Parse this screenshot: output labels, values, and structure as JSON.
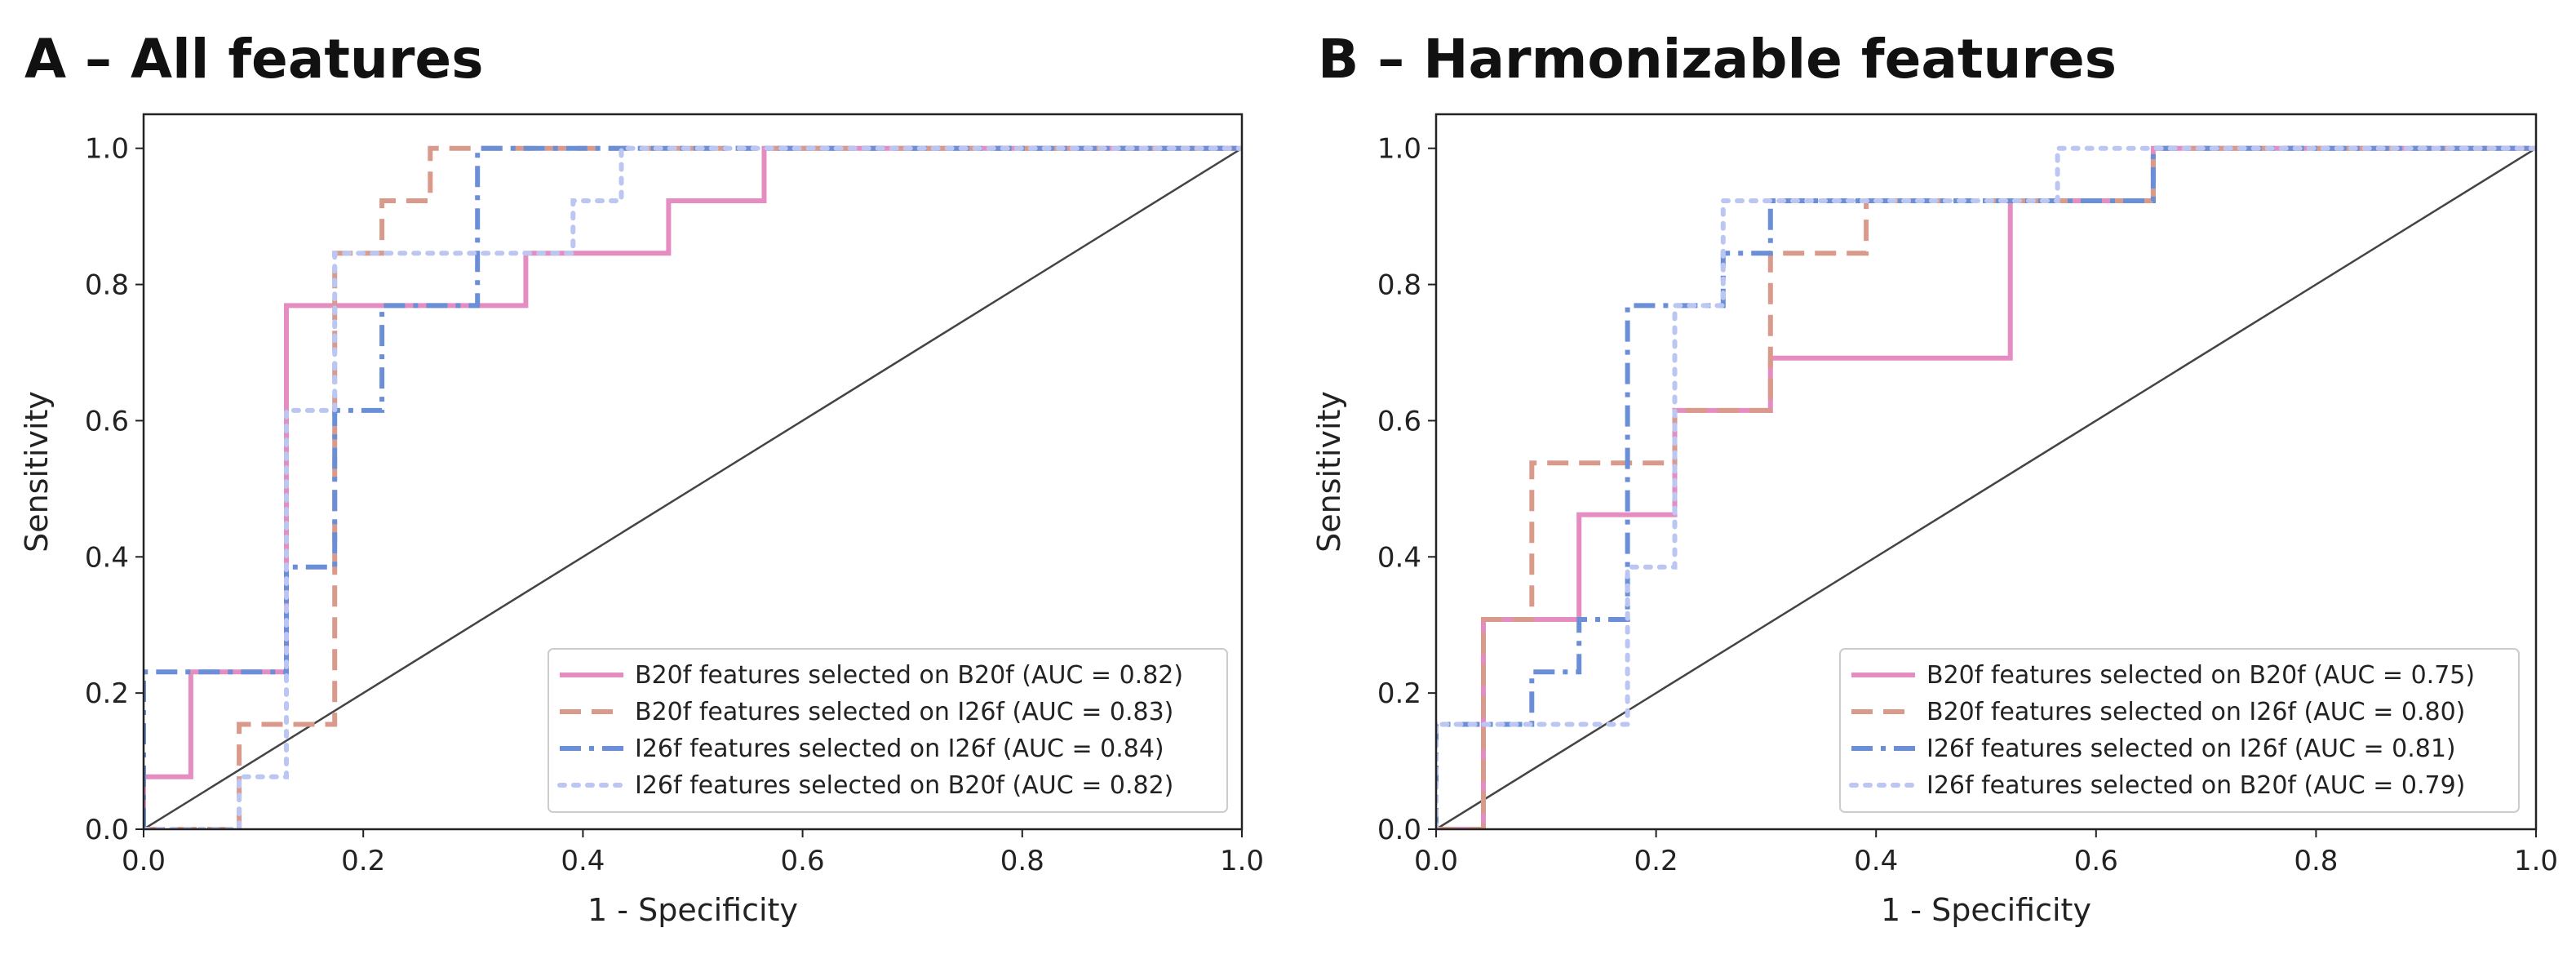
{
  "chart_data": [
    {
      "type": "line",
      "title": "A – All features",
      "xlabel": "1 - Specificity",
      "ylabel": "Sensitivity",
      "xlim": [
        0,
        1
      ],
      "ylim": [
        0,
        1.05
      ],
      "ticks": [
        "0.0",
        "0.2",
        "0.4",
        "0.6",
        "0.8",
        "1.0"
      ],
      "legend_position": "lower-right",
      "diagonal_color": "#444444",
      "series": [
        {
          "name": "B20f features selected on B20f (AUC = 0.82)",
          "color": "#e58cc0",
          "dash": "solid",
          "x": [
            0,
            0,
            0.043,
            0.043,
            0.13,
            0.13,
            0.348,
            0.348,
            0.478,
            0.478,
            0.565,
            0.565,
            1.0
          ],
          "y": [
            0,
            0.077,
            0.077,
            0.231,
            0.231,
            0.769,
            0.769,
            0.846,
            0.846,
            0.923,
            0.923,
            1.0,
            1.0
          ]
        },
        {
          "name": "B20f features selected on I26f (AUC = 0.83)",
          "color": "#d99a8c",
          "dash": "dashed",
          "x": [
            0,
            0.087,
            0.087,
            0.174,
            0.174,
            0.217,
            0.217,
            0.261,
            0.261,
            1.0
          ],
          "y": [
            0,
            0,
            0.154,
            0.154,
            0.846,
            0.846,
            0.923,
            0.923,
            1.0,
            1.0
          ],
          "extra_x": [
            0.0,
            0.0
          ],
          "extra_y": [
            0.0,
            0.0
          ]
        },
        {
          "name": "I26f features selected on I26f (AUC = 0.84)",
          "color": "#6a8fd6",
          "dash": "dashdot",
          "x": [
            0,
            0,
            0.13,
            0.13,
            0.174,
            0.174,
            0.217,
            0.217,
            0.304,
            0.304,
            1.0
          ],
          "y": [
            0,
            0.231,
            0.231,
            0.385,
            0.385,
            0.615,
            0.615,
            0.769,
            0.769,
            1.0,
            1.0
          ]
        },
        {
          "name": "I26f features selected on B20f (AUC = 0.82)",
          "color": "#bcc6f2",
          "dash": "dotted",
          "x": [
            0,
            0.087,
            0.087,
            0.13,
            0.13,
            0.174,
            0.174,
            0.391,
            0.391,
            0.435,
            0.435,
            1.0
          ],
          "y": [
            0,
            0,
            0.077,
            0.077,
            0.615,
            0.615,
            0.846,
            0.846,
            0.923,
            0.923,
            1.0,
            1.0
          ]
        }
      ]
    },
    {
      "type": "line",
      "title": "B – Harmonizable features",
      "xlabel": "1 - Specificity",
      "ylabel": "Sensitivity",
      "xlim": [
        0,
        1
      ],
      "ylim": [
        0,
        1.05
      ],
      "ticks": [
        "0.0",
        "0.2",
        "0.4",
        "0.6",
        "0.8",
        "1.0"
      ],
      "legend_position": "lower-right",
      "diagonal_color": "#444444",
      "series": [
        {
          "name": "B20f features selected on B20f (AUC = 0.75)",
          "color": "#e58cc0",
          "dash": "solid",
          "x": [
            0,
            0.043,
            0.043,
            0.13,
            0.13,
            0.217,
            0.217,
            0.304,
            0.304,
            0.522,
            0.522,
            0.652,
            0.652,
            1.0
          ],
          "y": [
            0,
            0,
            0.308,
            0.308,
            0.462,
            0.462,
            0.615,
            0.615,
            0.692,
            0.692,
            0.923,
            0.923,
            1.0,
            1.0
          ]
        },
        {
          "name": "B20f features selected on I26f (AUC = 0.80)",
          "color": "#d99a8c",
          "dash": "dashed",
          "x": [
            0,
            0.043,
            0.043,
            0.087,
            0.087,
            0.217,
            0.217,
            0.304,
            0.304,
            0.391,
            0.391,
            0.652,
            0.652,
            1.0
          ],
          "y": [
            0,
            0,
            0.308,
            0.308,
            0.538,
            0.538,
            0.615,
            0.615,
            0.846,
            0.846,
            0.923,
            0.923,
            1.0,
            1.0
          ]
        },
        {
          "name": "I26f features selected on I26f (AUC = 0.81)",
          "color": "#6a8fd6",
          "dash": "dashdot",
          "x": [
            0,
            0,
            0.087,
            0.087,
            0.13,
            0.13,
            0.174,
            0.174,
            0.261,
            0.261,
            0.304,
            0.304,
            0.652,
            0.652,
            1.0
          ],
          "y": [
            0,
            0.154,
            0.154,
            0.231,
            0.231,
            0.308,
            0.308,
            0.769,
            0.769,
            0.846,
            0.846,
            0.923,
            0.923,
            1.0,
            1.0
          ]
        },
        {
          "name": "I26f features selected on B20f (AUC = 0.79)",
          "color": "#bcc6f2",
          "dash": "dotted",
          "x": [
            0,
            0,
            0.174,
            0.174,
            0.217,
            0.217,
            0.261,
            0.261,
            0.565,
            0.565,
            1.0
          ],
          "y": [
            0,
            0.154,
            0.154,
            0.385,
            0.385,
            0.769,
            0.769,
            0.923,
            0.923,
            1.0,
            1.0
          ]
        }
      ]
    }
  ]
}
